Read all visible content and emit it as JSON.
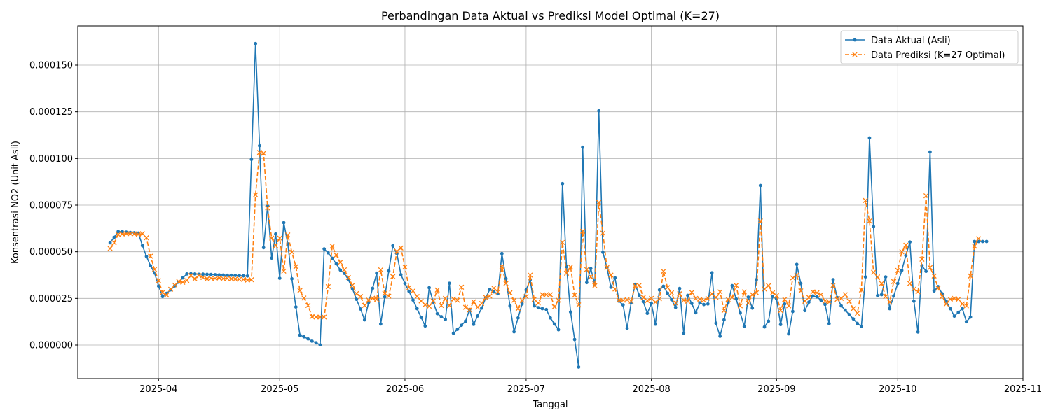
{
  "chart_data": {
    "type": "line",
    "title": "Perbandingan Data Aktual vs Prediksi Model Optimal (K=27)",
    "xlabel": "Tanggal",
    "ylabel": "Konsentrasi NO2 (Unit Asli)",
    "x_range": [
      "2025-03-12",
      "2025-11-01"
    ],
    "ylim": [
      -1.8e-05,
      0.000171
    ],
    "x_ticks": [
      {
        "date": "2025-04-01",
        "label": "2025-04"
      },
      {
        "date": "2025-05-01",
        "label": "2025-05"
      },
      {
        "date": "2025-06-01",
        "label": "2025-06"
      },
      {
        "date": "2025-07-01",
        "label": "2025-07"
      },
      {
        "date": "2025-08-01",
        "label": "2025-08"
      },
      {
        "date": "2025-09-01",
        "label": "2025-09"
      },
      {
        "date": "2025-10-01",
        "label": "2025-10"
      },
      {
        "date": "2025-11-01",
        "label": "2025-11"
      }
    ],
    "y_ticks": [
      {
        "value": 0,
        "label": "0.000000"
      },
      {
        "value": 2.5e-05,
        "label": "0.000025"
      },
      {
        "value": 5e-05,
        "label": "0.000050"
      },
      {
        "value": 7.5e-05,
        "label": "0.000075"
      },
      {
        "value": 0.0001,
        "label": "0.000100"
      },
      {
        "value": 0.000125,
        "label": "0.000125"
      },
      {
        "value": 0.00015,
        "label": "0.000150"
      }
    ],
    "grid": true,
    "legend_position": "top-right",
    "start_date": "2025-03-20",
    "colors": {
      "actual": "#1f77b4",
      "predicted": "#ff7f0e",
      "grid": "#b0b0b0"
    },
    "series": [
      {
        "name": "Data Aktual (Asli)",
        "style": "solid-dot",
        "values": [
          5.48e-05,
          5.78e-05,
          6.08e-05,
          6.08e-05,
          6.05e-05,
          6.03e-05,
          6.02e-05,
          6e-05,
          5.33e-05,
          4.75e-05,
          4.25e-05,
          3.86e-05,
          3.16e-05,
          2.6e-05,
          2.77e-05,
          2.96e-05,
          3.17e-05,
          3.37e-05,
          3.6e-05,
          3.81e-05,
          3.82e-05,
          3.81e-05,
          3.79e-05,
          3.8e-05,
          3.79e-05,
          3.78e-05,
          3.77e-05,
          3.76e-05,
          3.75e-05,
          3.74e-05,
          3.74e-05,
          3.73e-05,
          3.72e-05,
          3.71e-05,
          3.7e-05,
          9.95e-05,
          0.0001615,
          0.0001068,
          5.22e-05,
          7.45e-05,
          4.66e-05,
          5.95e-05,
          3.58e-05,
          6.56e-05,
          5.42e-05,
          3.55e-05,
          2.04e-05,
          5.3e-06,
          4.4e-06,
          3.3e-06,
          2.1e-06,
          1.2e-06,
          1e-07,
          5.15e-05,
          4.94e-05,
          4.65e-05,
          4.35e-05,
          4.02e-05,
          3.84e-05,
          3.5e-05,
          3.02e-05,
          2.45e-05,
          1.93e-05,
          1.35e-05,
          2.28e-05,
          3.04e-05,
          3.85e-05,
          1.13e-05,
          2.58e-05,
          3.97e-05,
          5.32e-05,
          4.9e-05,
          3.77e-05,
          3.3e-05,
          2.88e-05,
          2.41e-05,
          1.95e-05,
          1.48e-05,
          1.02e-05,
          3.07e-05,
          2.3e-05,
          1.68e-05,
          1.52e-05,
          1.37e-05,
          3.31e-05,
          6.3e-06,
          8.4e-06,
          1.06e-05,
          1.28e-05,
          1.9e-05,
          1.11e-05,
          1.56e-05,
          1.98e-05,
          2.53e-05,
          2.98e-05,
          2.85e-05,
          2.75e-05,
          4.9e-05,
          3.55e-05,
          2.1e-05,
          7.1e-06,
          1.45e-05,
          2.2e-05,
          2.95e-05,
          3.5e-05,
          2.1e-05,
          2e-05,
          1.95e-05,
          1.9e-05,
          1.45e-05,
          1.13e-05,
          8.2e-06,
          8.65e-05,
          4.2e-05,
          1.77e-05,
          3e-06,
          -1.18e-05,
          0.000106,
          3.35e-05,
          4.1e-05,
          3.25e-05,
          0.0001255,
          4.97e-05,
          4.15e-05,
          3.1e-05,
          3.6e-05,
          2.35e-05,
          2.15e-05,
          9e-06,
          2.27e-05,
          3.25e-05,
          2.67e-05,
          2.32e-05,
          1.7e-05,
          2.23e-05,
          1.12e-05,
          2.95e-05,
          3.15e-05,
          2.78e-05,
          2.43e-05,
          2.02e-05,
          3.03e-05,
          6.4e-06,
          2.66e-05,
          2.23e-05,
          1.73e-05,
          2.26e-05,
          2.17e-05,
          2.2e-05,
          3.87e-05,
          1.17e-05,
          4.7e-06,
          1.35e-05,
          2.27e-05,
          3.18e-05,
          2.47e-05,
          1.72e-05,
          1e-05,
          2.57e-05,
          1.98e-05,
          3.5e-05,
          8.55e-05,
          9.7e-06,
          1.28e-05,
          2.6e-05,
          2.47e-05,
          1.1e-05,
          2.2e-05,
          6e-06,
          1.8e-05,
          4.32e-05,
          3.3e-05,
          1.85e-05,
          2.3e-05,
          2.63e-05,
          2.58e-05,
          2.4e-05,
          2.18e-05,
          1.15e-05,
          3.5e-05,
          2.55e-05,
          2.1e-05,
          1.87e-05,
          1.63e-05,
          1.4e-05,
          1.16e-05,
          1e-05,
          3.65e-05,
          0.000111,
          6.35e-05,
          2.65e-05,
          2.7e-05,
          3.65e-05,
          1.95e-05,
          2.63e-05,
          3.3e-05,
          4e-05,
          4.8e-05,
          5.52e-05,
          2.35e-05,
          7e-06,
          4.25e-05,
          3.95e-05,
          0.0001035,
          2.9e-05,
          3.13e-05,
          2.75e-05,
          2.35e-05,
          1.95e-05,
          1.55e-05,
          1.75e-05,
          1.95e-05,
          1.25e-05,
          1.5e-05,
          5.55e-05,
          5.55e-05,
          5.55e-05,
          5.55e-05
        ]
      },
      {
        "name": "Data Prediksi (K=27 Optimal)",
        "style": "dashed-x",
        "values": [
          5.17e-05,
          5.48e-05,
          5.92e-05,
          5.95e-05,
          5.97e-05,
          5.97e-05,
          5.96e-05,
          5.94e-05,
          5.97e-05,
          5.75e-05,
          4.76e-05,
          4.05e-05,
          3.45e-05,
          2.82e-05,
          2.68e-05,
          2.99e-05,
          3.21e-05,
          3.4e-05,
          3.36e-05,
          3.46e-05,
          3.72e-05,
          3.55e-05,
          3.72e-05,
          3.62e-05,
          3.55e-05,
          3.58e-05,
          3.57e-05,
          3.59e-05,
          3.56e-05,
          3.57e-05,
          3.55e-05,
          3.54e-05,
          3.53e-05,
          3.52e-05,
          3.48e-05,
          3.5e-05,
          8.05e-05,
          0.0001032,
          0.0001028,
          7.35e-05,
          5.73e-05,
          5.32e-05,
          5.73e-05,
          3.96e-05,
          5.9e-05,
          4.98e-05,
          4.2e-05,
          2.92e-05,
          2.52e-05,
          2.12e-05,
          1.52e-05,
          1.5e-05,
          1.5e-05,
          1.5e-05,
          3.13e-05,
          5.3e-05,
          4.82e-05,
          4.43e-05,
          4.03e-05,
          3.62e-05,
          3.2e-05,
          2.76e-05,
          2.6e-05,
          2.12e-05,
          2.41e-05,
          2.51e-05,
          2.44e-05,
          4.03e-05,
          2.77e-05,
          2.62e-05,
          3.67e-05,
          5.02e-05,
          5.2e-05,
          4.18e-05,
          3.08e-05,
          2.9e-05,
          2.6e-05,
          2.36e-05,
          2.16e-05,
          2.08e-05,
          2.35e-05,
          2.95e-05,
          2.12e-05,
          2.5e-05,
          2.12e-05,
          2.47e-05,
          2.4e-05,
          3.1e-05,
          2.02e-05,
          1.88e-05,
          2.32e-05,
          2.03e-05,
          2.23e-05,
          2.55e-05,
          2.62e-05,
          3.05e-05,
          2.85e-05,
          4.2e-05,
          3.3e-05,
          2.8e-05,
          2.4e-05,
          1.95e-05,
          2.4e-05,
          2.6e-05,
          3.75e-05,
          2.45e-05,
          2.25e-05,
          2.7e-05,
          2.7e-05,
          2.7e-05,
          2.05e-05,
          2.4e-05,
          5.5e-05,
          3.85e-05,
          4.18e-05,
          2.68e-05,
          2.15e-05,
          6.1e-05,
          4.05e-05,
          3.65e-05,
          3.18e-05,
          7.65e-05,
          6e-05,
          4.15e-05,
          3.75e-05,
          3e-05,
          2.4e-05,
          2.4e-05,
          2.42e-05,
          2.35e-05,
          3.18e-05,
          3.2e-05,
          2.55e-05,
          2.38e-05,
          2.5e-05,
          2.3e-05,
          2.48e-05,
          3.95e-05,
          3.08e-05,
          2.8e-05,
          2.25e-05,
          2.75e-05,
          2.4e-05,
          2.35e-05,
          2.82e-05,
          2.5e-05,
          2.45e-05,
          2.4e-05,
          2.5e-05,
          2.75e-05,
          2.55e-05,
          2.85e-05,
          1.85e-05,
          2.45e-05,
          2.55e-05,
          3.2e-05,
          2.1e-05,
          2.85e-05,
          2.25e-05,
          2.7e-05,
          2.8e-05,
          6.65e-05,
          3e-05,
          3.18e-05,
          2.8e-05,
          2.65e-05,
          1.85e-05,
          2.45e-05,
          2.1e-05,
          3.6e-05,
          3.75e-05,
          2.9e-05,
          2.35e-05,
          2.55e-05,
          2.85e-05,
          2.8e-05,
          2.7e-05,
          2.35e-05,
          2.3e-05,
          3.2e-05,
          2.45e-05,
          2.5e-05,
          2.7e-05,
          2.35e-05,
          1.95e-05,
          1.7e-05,
          2.95e-05,
          7.75e-05,
          6.65e-05,
          3.9e-05,
          3.65e-05,
          3.3e-05,
          2.6e-05,
          2.3e-05,
          3.4e-05,
          4e-05,
          5e-05,
          5.35e-05,
          3.3e-05,
          3e-05,
          2.85e-05,
          4.6e-05,
          8e-05,
          4.15e-05,
          3.7e-05,
          3.05e-05,
          2.6e-05,
          2.2e-05,
          2.45e-05,
          2.5e-05,
          2.45e-05,
          2.2e-05,
          2.1e-05,
          3.7e-05,
          5.3e-05,
          5.7e-05
        ]
      }
    ]
  }
}
